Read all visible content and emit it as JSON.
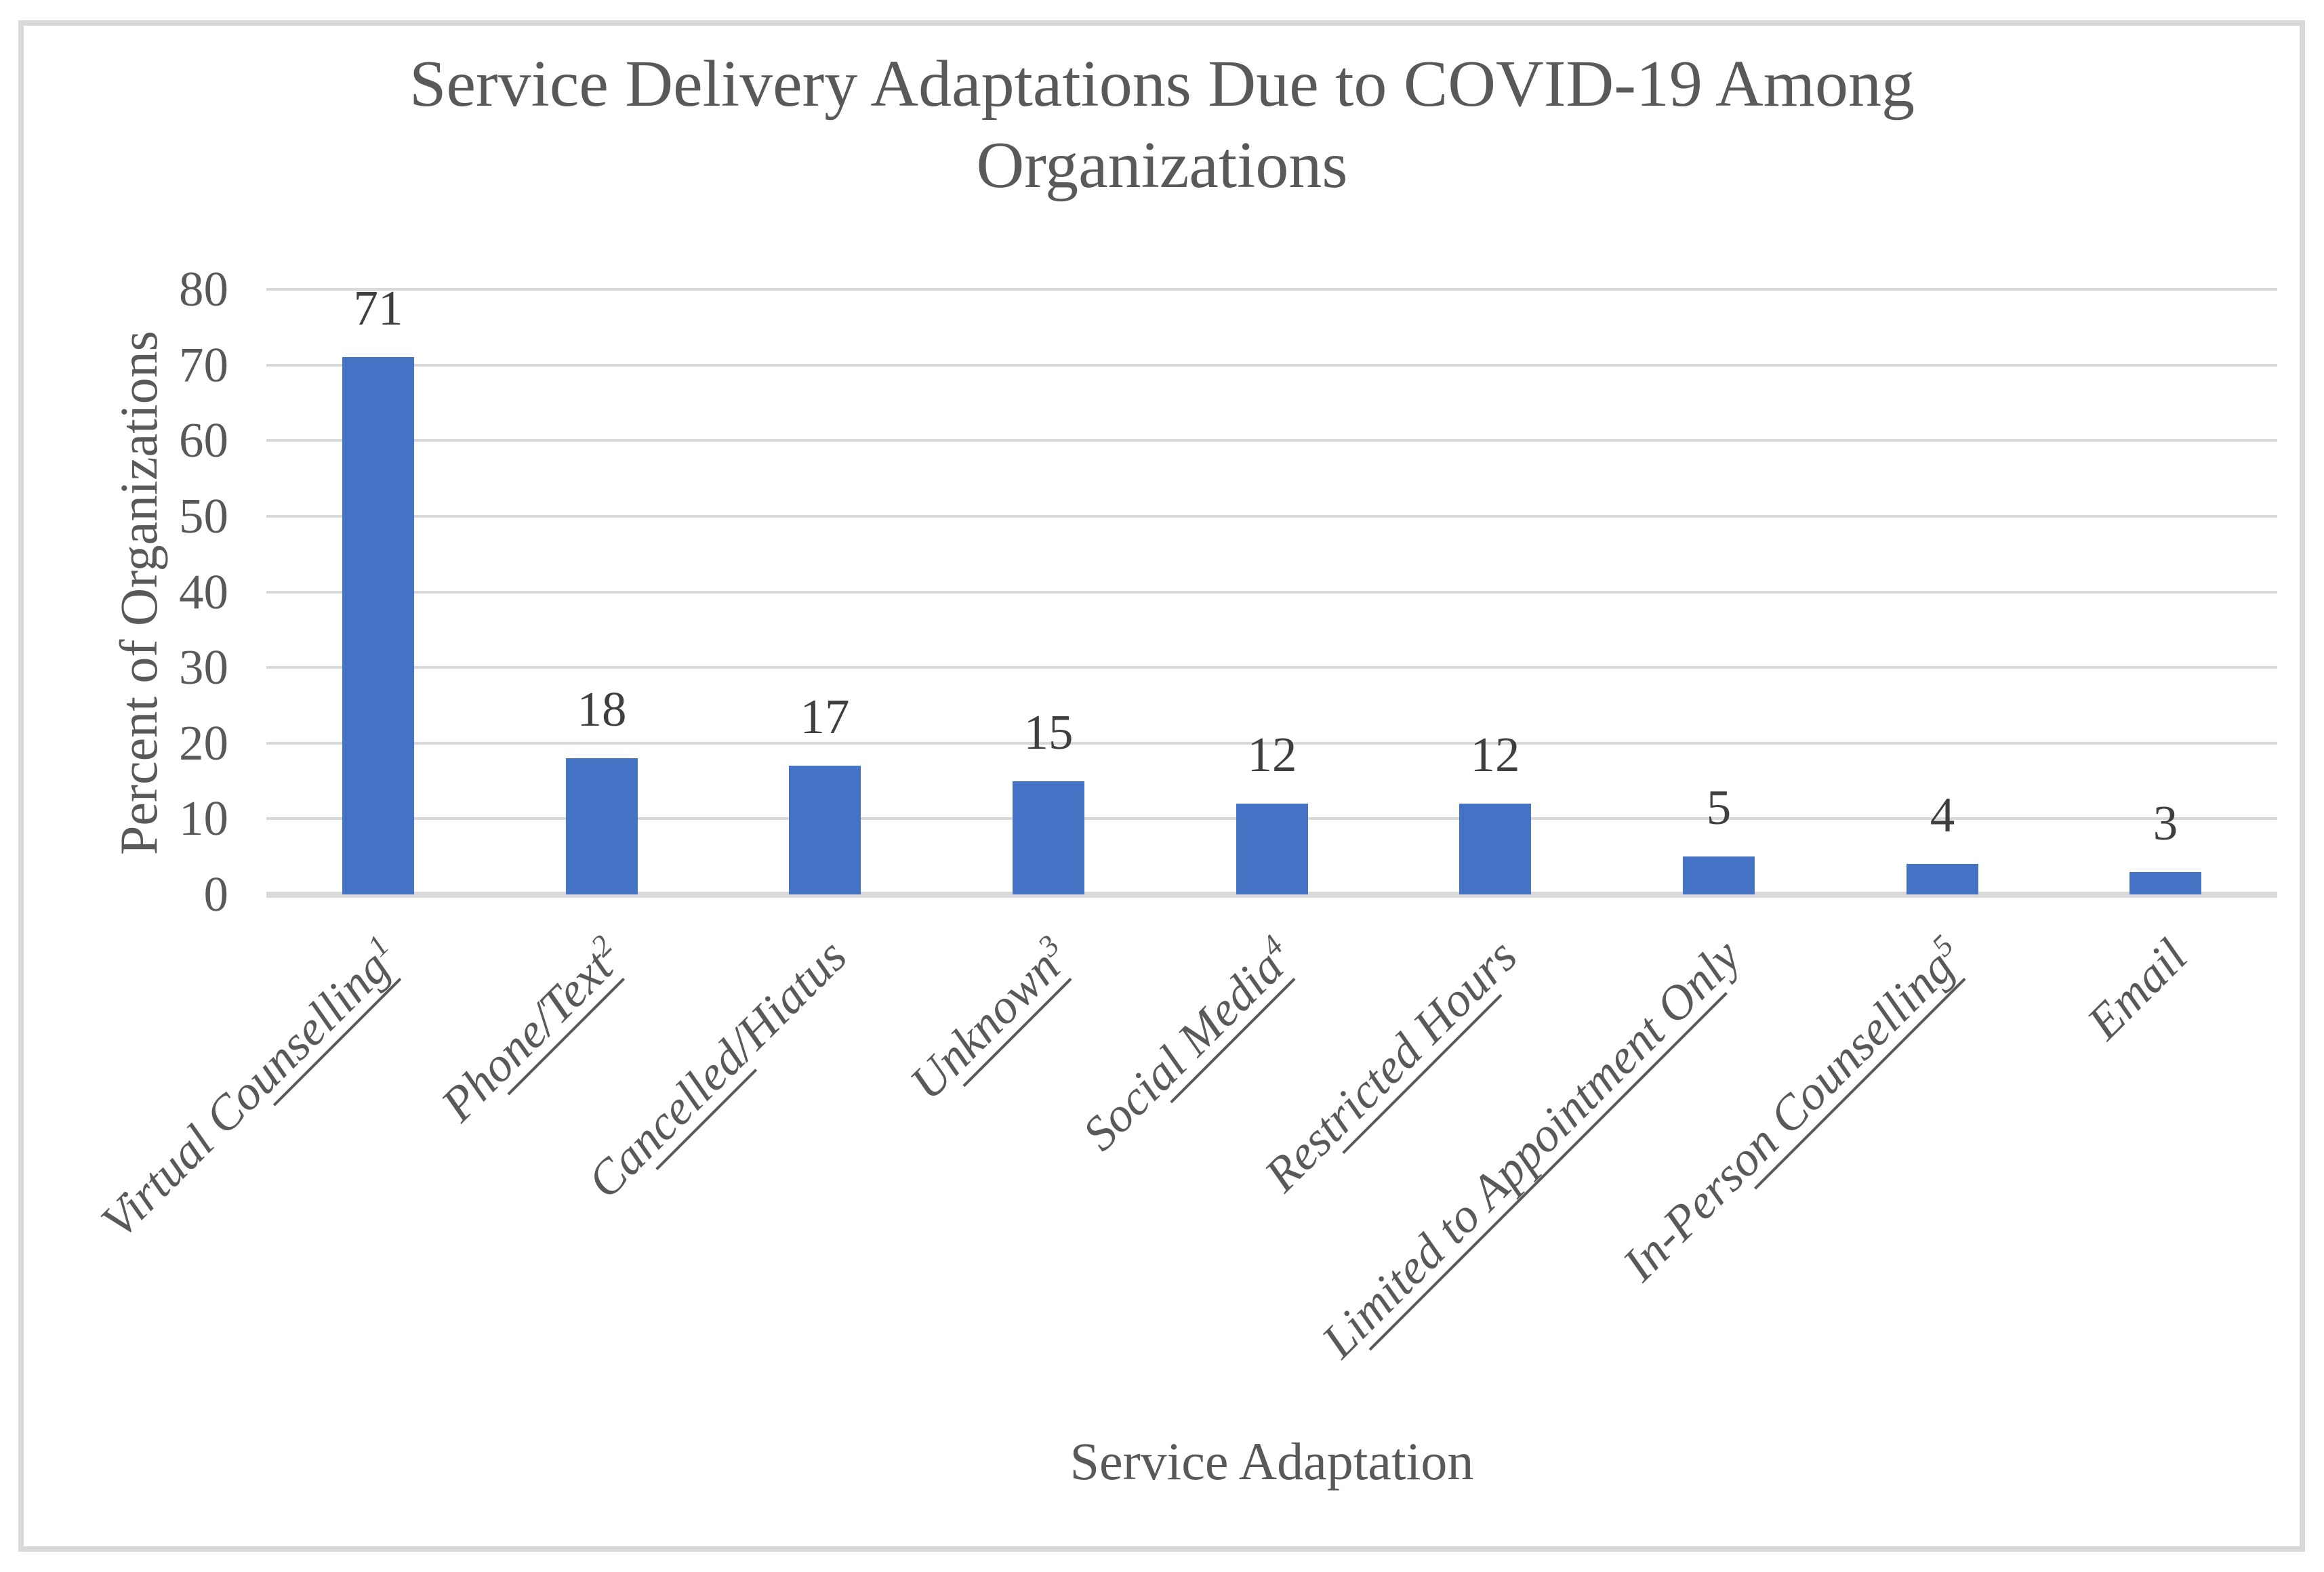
{
  "chart_data": {
    "type": "bar",
    "title": "Service Delivery Adaptations Due to COVID-19 Among Organizations",
    "title_lines": [
      "Service Delivery Adaptations Due to COVID-19 Among",
      "Organizations"
    ],
    "xlabel": "Service Adaptation",
    "ylabel": "Percent of Organizations",
    "ylim": [
      0,
      80
    ],
    "yticks": [
      0,
      10,
      20,
      30,
      40,
      50,
      60,
      70,
      80
    ],
    "grid": true,
    "legend_position": "none",
    "bar_color": "#4472C4",
    "categories": [
      "Virtual Counselling¹",
      "Phone/Text²",
      "Cancelled/Hiatus",
      "Unknown³",
      "Social Media⁴",
      "Restricted Hours",
      "Limited to Appointment Only",
      "In-Person Counselling⁵",
      "Email"
    ],
    "category_display_parts": [
      {
        "pre": "Virtual Co",
        "underline": "unselling",
        "post": "",
        "sup": "1"
      },
      {
        "pre": "Ph",
        "underline": "one/Text",
        "post": "",
        "sup": "2"
      },
      {
        "pre": "Ca",
        "underline": "ncelled",
        "post": "/Hiatus",
        "sup": ""
      },
      {
        "pre": "U",
        "underline": "nknown",
        "post": "",
        "sup": "3"
      },
      {
        "pre": "Soci",
        "underline": "al Media",
        "post": "",
        "sup": "4"
      },
      {
        "pre": "Res",
        "underline": "tricted Hou",
        "post": "rs",
        "sup": ""
      },
      {
        "pre": "L",
        "underline": "imited to Appointment On",
        "post": "ly",
        "sup": ""
      },
      {
        "pre": "In-Pers",
        "underline": "on Counselling",
        "post": "",
        "sup": "5"
      },
      {
        "pre": "Email",
        "underline": "",
        "post": "",
        "sup": ""
      }
    ],
    "values": [
      71,
      18,
      17,
      15,
      12,
      12,
      5,
      4,
      3
    ]
  },
  "colors": {
    "bar": "#4472C4",
    "gridline": "#D9D9D9",
    "axis_line": "#D9D9D9",
    "border": "#D9D9D9",
    "title_text": "#595959",
    "axis_text": "#595959",
    "data_label_text": "#3F3F3F"
  }
}
